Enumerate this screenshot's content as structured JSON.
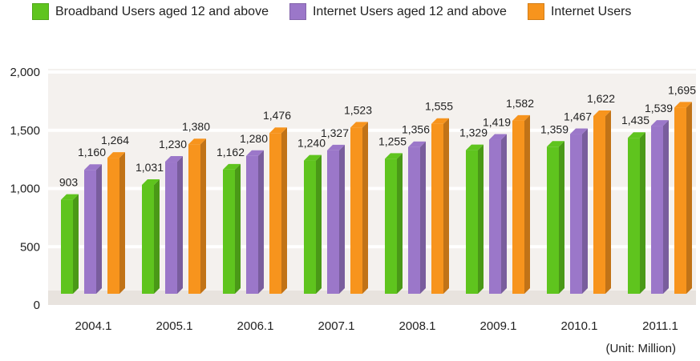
{
  "legend": [
    {
      "label": "Broadband Users aged 12 and above",
      "color": "#5fc41e"
    },
    {
      "label": "Internet Users aged 12 and above",
      "color": "#9b77c9"
    },
    {
      "label": "Internet Users",
      "color": "#f7941d"
    }
  ],
  "unit": "(Unit: Million)",
  "chart_data": {
    "type": "bar",
    "title": "",
    "xlabel": "",
    "ylabel": "",
    "ylim": [
      0,
      2000
    ],
    "yticks": [
      {
        "value": 0,
        "label": "0"
      },
      {
        "value": 500,
        "label": "500"
      },
      {
        "value": 1000,
        "label": "1,000"
      },
      {
        "value": 1500,
        "label": "1,500"
      },
      {
        "value": 2000,
        "label": "2,000"
      }
    ],
    "categories": [
      "2004.1",
      "2005.1",
      "2006.1",
      "2007.1",
      "2008.1",
      "2009.1",
      "2010.1",
      "2011.1"
    ],
    "series": [
      {
        "name": "Broadband Users aged 12 and above",
        "color": "#5fc41e",
        "values": [
          903,
          1031,
          1162,
          1240,
          1255,
          1329,
          1359,
          1435
        ],
        "labels": [
          "903",
          "1,031",
          "1,162",
          "1,240",
          "1,255",
          "1,329",
          "1,359",
          "1,435"
        ]
      },
      {
        "name": "Internet Users aged 12 and above",
        "color": "#9b77c9",
        "values": [
          1160,
          1230,
          1280,
          1327,
          1356,
          1419,
          1467,
          1539
        ],
        "labels": [
          "1,160",
          "1,230",
          "1,280",
          "1,327",
          "1,356",
          "1,419",
          "1,467",
          "1,539"
        ]
      },
      {
        "name": "Internet Users",
        "color": "#f7941d",
        "values": [
          1264,
          1380,
          1476,
          1523,
          1555,
          1582,
          1622,
          1695
        ],
        "labels": [
          "1,264",
          "1,380",
          "1,476",
          "1,523",
          "1,555",
          "1,582",
          "1,622",
          "1,695"
        ]
      }
    ],
    "grid": true,
    "legend_position": "top"
  }
}
